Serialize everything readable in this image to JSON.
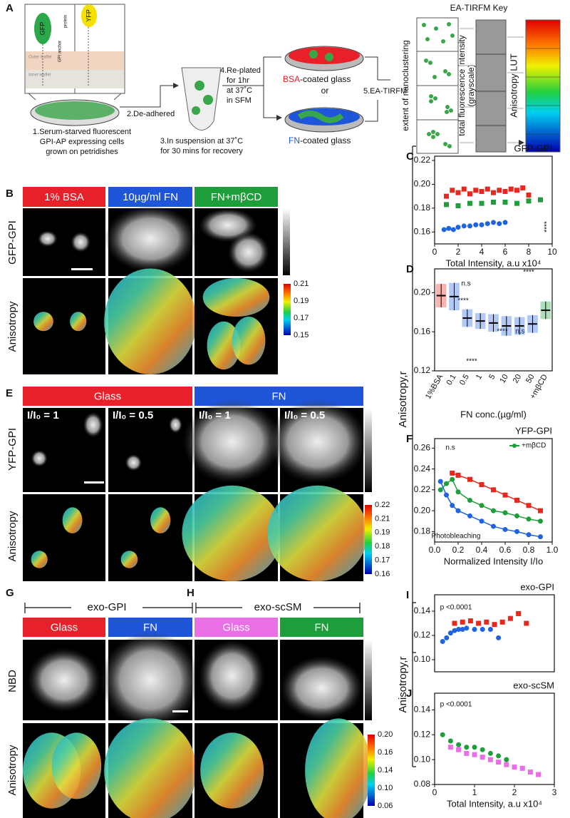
{
  "panel_a": {
    "letter": "A",
    "cards": [
      "GFP",
      "YFP"
    ],
    "protein": "protein",
    "anchor": "GPI anchor",
    "outer": "Outer leaflet",
    "inner": "Inner leaflet",
    "step1": [
      "1.Serum-starved fluorescent",
      "GPI-AP expressing cells",
      "grown on petridishes"
    ],
    "step2": "2.De-adhered",
    "step3": [
      "3.In suspension at 37˚C",
      "for 30 mins for recovery"
    ],
    "step4": [
      "4.Re-plated",
      "for 1hr",
      "at 37˚C",
      "in SFM"
    ],
    "bsa": "BSA",
    "bsa_rest": "-coated glass",
    "or": "or",
    "fn": "FN",
    "fn_rest": "-coated glass",
    "step5": "5.EA-TIRFM"
  },
  "key": {
    "title": "EA-TIRFM Key",
    "nano": "extent of nanoclustering",
    "intensity": "total fluorescence intensity",
    "grayscale": "(grayscale)",
    "lut": "Anisotropy LUT"
  },
  "panel_b": {
    "letter": "B",
    "headers": [
      "1% BSA",
      "10µg/ml FN",
      "FN+mβCD"
    ],
    "rows": [
      "GFP-GPI",
      "Anisotropy"
    ],
    "scale": [
      0.21,
      0.19,
      0.17,
      0.15
    ]
  },
  "panel_e": {
    "letter": "E",
    "groups": [
      "Glass",
      "FN"
    ],
    "frames": [
      "I/I₀ = 1",
      "I/I₀ = 0.5",
      "I/I₀ = 1",
      "I/I₀ = 0.5"
    ],
    "rows": [
      "YFP-GPI",
      "Anisotropy"
    ],
    "scale": [
      0.22,
      0.21,
      0.19,
      0.18,
      0.17,
      0.16
    ]
  },
  "panel_gh": {
    "letters": [
      "G",
      "H"
    ],
    "groups": [
      "exo-GPI",
      "exo-scSM"
    ],
    "headers": [
      "Glass",
      "FN",
      "Glass",
      "FN"
    ],
    "rows": [
      "NBD",
      "Anisotropy"
    ],
    "scale": [
      {
        "value": 0.2,
        "label": "0.20"
      },
      0.16,
      0.14,
      {
        "value": 0.1,
        "label": "0.10"
      },
      0.06
    ]
  },
  "shared_labels": [
    "Anisotropy,r",
    "Anisotropy,r"
  ],
  "chart_data": [
    {
      "type": "scatter",
      "letter": "C",
      "title": "GFP-GPI",
      "x_label": "Total Intensity, a.u  x10⁴",
      "xlim": [
        0,
        10
      ],
      "xticks": [
        0,
        2,
        4,
        6,
        8,
        10
      ],
      "ylim": [
        0.15,
        0.22
      ],
      "yticks": [
        0.16,
        0.18,
        {
          "value": 0.2,
          "label": "0.20"
        },
        0.22
      ],
      "annotations": [
        "****"
      ],
      "series": [
        {
          "color": "#e8281e",
          "marker": "square",
          "x": [
            1,
            1.5,
            2,
            2.5,
            3,
            3.5,
            4,
            4.5,
            5,
            5.5,
            6,
            6.5,
            7,
            7.5,
            8
          ],
          "values": [
            0.19,
            0.195,
            0.193,
            0.196,
            0.192,
            0.195,
            0.194,
            0.196,
            0.193,
            0.195,
            0.194,
            0.196,
            0.195,
            0.197,
            0.191
          ]
        },
        {
          "color": "#1e9e3a",
          "marker": "square",
          "x": [
            1,
            2,
            3,
            4,
            5,
            6,
            7,
            8,
            9
          ],
          "values": [
            0.183,
            0.182,
            0.184,
            0.184,
            0.185,
            0.185,
            0.184,
            0.186,
            0.187
          ]
        },
        {
          "color": "#1f63e0",
          "marker": "circle",
          "x": [
            0.8,
            1.2,
            1.6,
            2,
            2.5,
            3,
            3.5,
            4,
            4.5,
            5,
            5.5,
            6
          ],
          "values": [
            0.162,
            0.163,
            0.162,
            0.164,
            0.165,
            0.165,
            0.166,
            0.166,
            0.167,
            0.168,
            0.167,
            0.168
          ]
        }
      ]
    },
    {
      "type": "strip",
      "letter": "D",
      "x_label": "FN conc.(µg/ml)",
      "categories": [
        "1%BSA",
        "0.1",
        "0.5",
        "1",
        "5",
        "10",
        "20",
        "50",
        "+mβCD"
      ],
      "ylim": [
        0.12,
        0.22
      ],
      "yticks": [
        0.12,
        0.16,
        {
          "value": 0.2,
          "label": "0.20"
        }
      ],
      "values": [
        0.197,
        0.196,
        0.174,
        0.171,
        0.169,
        0.166,
        0.166,
        0.168,
        0.182
      ],
      "spread": [
        0.012,
        0.014,
        0.009,
        0.008,
        0.009,
        0.01,
        0.009,
        0.009,
        0.009
      ],
      "colors": [
        "#e8281e",
        "#1f63e0",
        "#1f63e0",
        "#1f63e0",
        "#1f63e0",
        "#1f63e0",
        "#1f63e0",
        "#1f63e0",
        "#1e9e3a"
      ],
      "annotations": [
        "n.s",
        "****",
        "****",
        "****",
        "n.s",
        "****"
      ]
    },
    {
      "type": "scatter",
      "letter": "F",
      "title": "YFP-GPI",
      "x_label": "Normalized Intensity I/Io",
      "xlim": [
        0,
        1
      ],
      "xticks": [
        {
          "value": 0,
          "label": "0.0"
        },
        0.2,
        0.4,
        0.6,
        0.8,
        {
          "value": 1,
          "label": "1.0"
        }
      ],
      "ylim": [
        0.17,
        0.265
      ],
      "yticks": [
        0.18,
        {
          "value": 0.2,
          "label": "0.20"
        },
        0.22,
        0.24,
        0.26
      ],
      "line": true,
      "annotations": [
        "n.s",
        "Photobleaching"
      ],
      "series": [
        {
          "color": "#e8281e",
          "marker": "square",
          "x": [
            0.15,
            0.2,
            0.3,
            0.4,
            0.5,
            0.6,
            0.7,
            0.8,
            0.9
          ],
          "values": [
            0.236,
            0.234,
            0.23,
            0.225,
            0.22,
            0.215,
            0.21,
            0.205,
            0.2
          ]
        },
        {
          "name": "+mβCD",
          "color": "#1e9e3a",
          "marker": "circle",
          "x": [
            0.05,
            0.1,
            0.15,
            0.2,
            0.3,
            0.4,
            0.5,
            0.6,
            0.7,
            0.8,
            0.9
          ],
          "values": [
            0.22,
            0.226,
            0.23,
            0.218,
            0.21,
            0.205,
            0.2,
            0.198,
            0.195,
            0.192,
            0.19
          ]
        },
        {
          "color": "#1f63e0",
          "marker": "circle",
          "x": [
            0.05,
            0.1,
            0.15,
            0.2,
            0.3,
            0.4,
            0.5,
            0.6,
            0.7,
            0.8,
            0.9
          ],
          "values": [
            0.228,
            0.215,
            0.205,
            0.2,
            0.195,
            0.19,
            0.185,
            0.182,
            0.18,
            0.177,
            0.175
          ]
        }
      ]
    },
    {
      "type": "scatter",
      "letter": "I",
      "title": "exo-GPI",
      "xlim": [
        0,
        3
      ],
      "ylim": [
        0.09,
        0.15
      ],
      "yticks": [
        {
          "value": 0.1,
          "label": "0.10"
        },
        0.12,
        0.14
      ],
      "annotations": [
        "p <0.0001"
      ],
      "series": [
        {
          "color": "#e8281e",
          "marker": "square",
          "x": [
            0.5,
            0.7,
            0.9,
            1.1,
            1.3,
            1.5,
            1.7,
            1.9,
            2.1,
            2.3
          ],
          "values": [
            0.13,
            0.131,
            0.132,
            0.13,
            0.131,
            0.129,
            0.131,
            0.134,
            0.138,
            0.13
          ]
        },
        {
          "color": "#1f63e0",
          "marker": "circle",
          "x": [
            0.2,
            0.3,
            0.4,
            0.5,
            0.6,
            0.7,
            0.8,
            1,
            1.2,
            1.4,
            1.6
          ],
          "values": [
            0.115,
            0.118,
            0.122,
            0.124,
            0.125,
            0.125,
            0.126,
            0.125,
            0.125,
            0.125,
            0.118
          ]
        }
      ]
    },
    {
      "type": "scatter",
      "letter": "J",
      "title": "exo-scSM",
      "x_label": "Total Intensity, a.u  x10⁴",
      "xlim": [
        0,
        3
      ],
      "xticks": [
        0,
        1,
        2,
        3
      ],
      "ylim": [
        0.08,
        0.15
      ],
      "yticks": [
        0.08,
        {
          "value": 0.1,
          "label": "0.10"
        },
        0.12,
        0.14
      ],
      "annotations": [
        "p <0.0001"
      ],
      "series": [
        {
          "color": "#1e9e3a",
          "marker": "circle",
          "x": [
            0.2,
            0.4,
            0.6,
            0.8,
            1,
            1.2,
            1.4,
            1.6,
            1.8
          ],
          "values": [
            0.12,
            0.115,
            0.112,
            0.11,
            0.11,
            0.108,
            0.105,
            0.103,
            0.1
          ]
        },
        {
          "color": "#ea6fe6",
          "marker": "square",
          "x": [
            0.4,
            0.6,
            0.8,
            1,
            1.2,
            1.4,
            1.6,
            1.8,
            2,
            2.2,
            2.4,
            2.6
          ],
          "values": [
            0.11,
            0.108,
            0.105,
            0.104,
            0.102,
            0.1,
            0.098,
            0.096,
            0.094,
            0.093,
            0.09,
            0.088
          ]
        }
      ]
    }
  ]
}
